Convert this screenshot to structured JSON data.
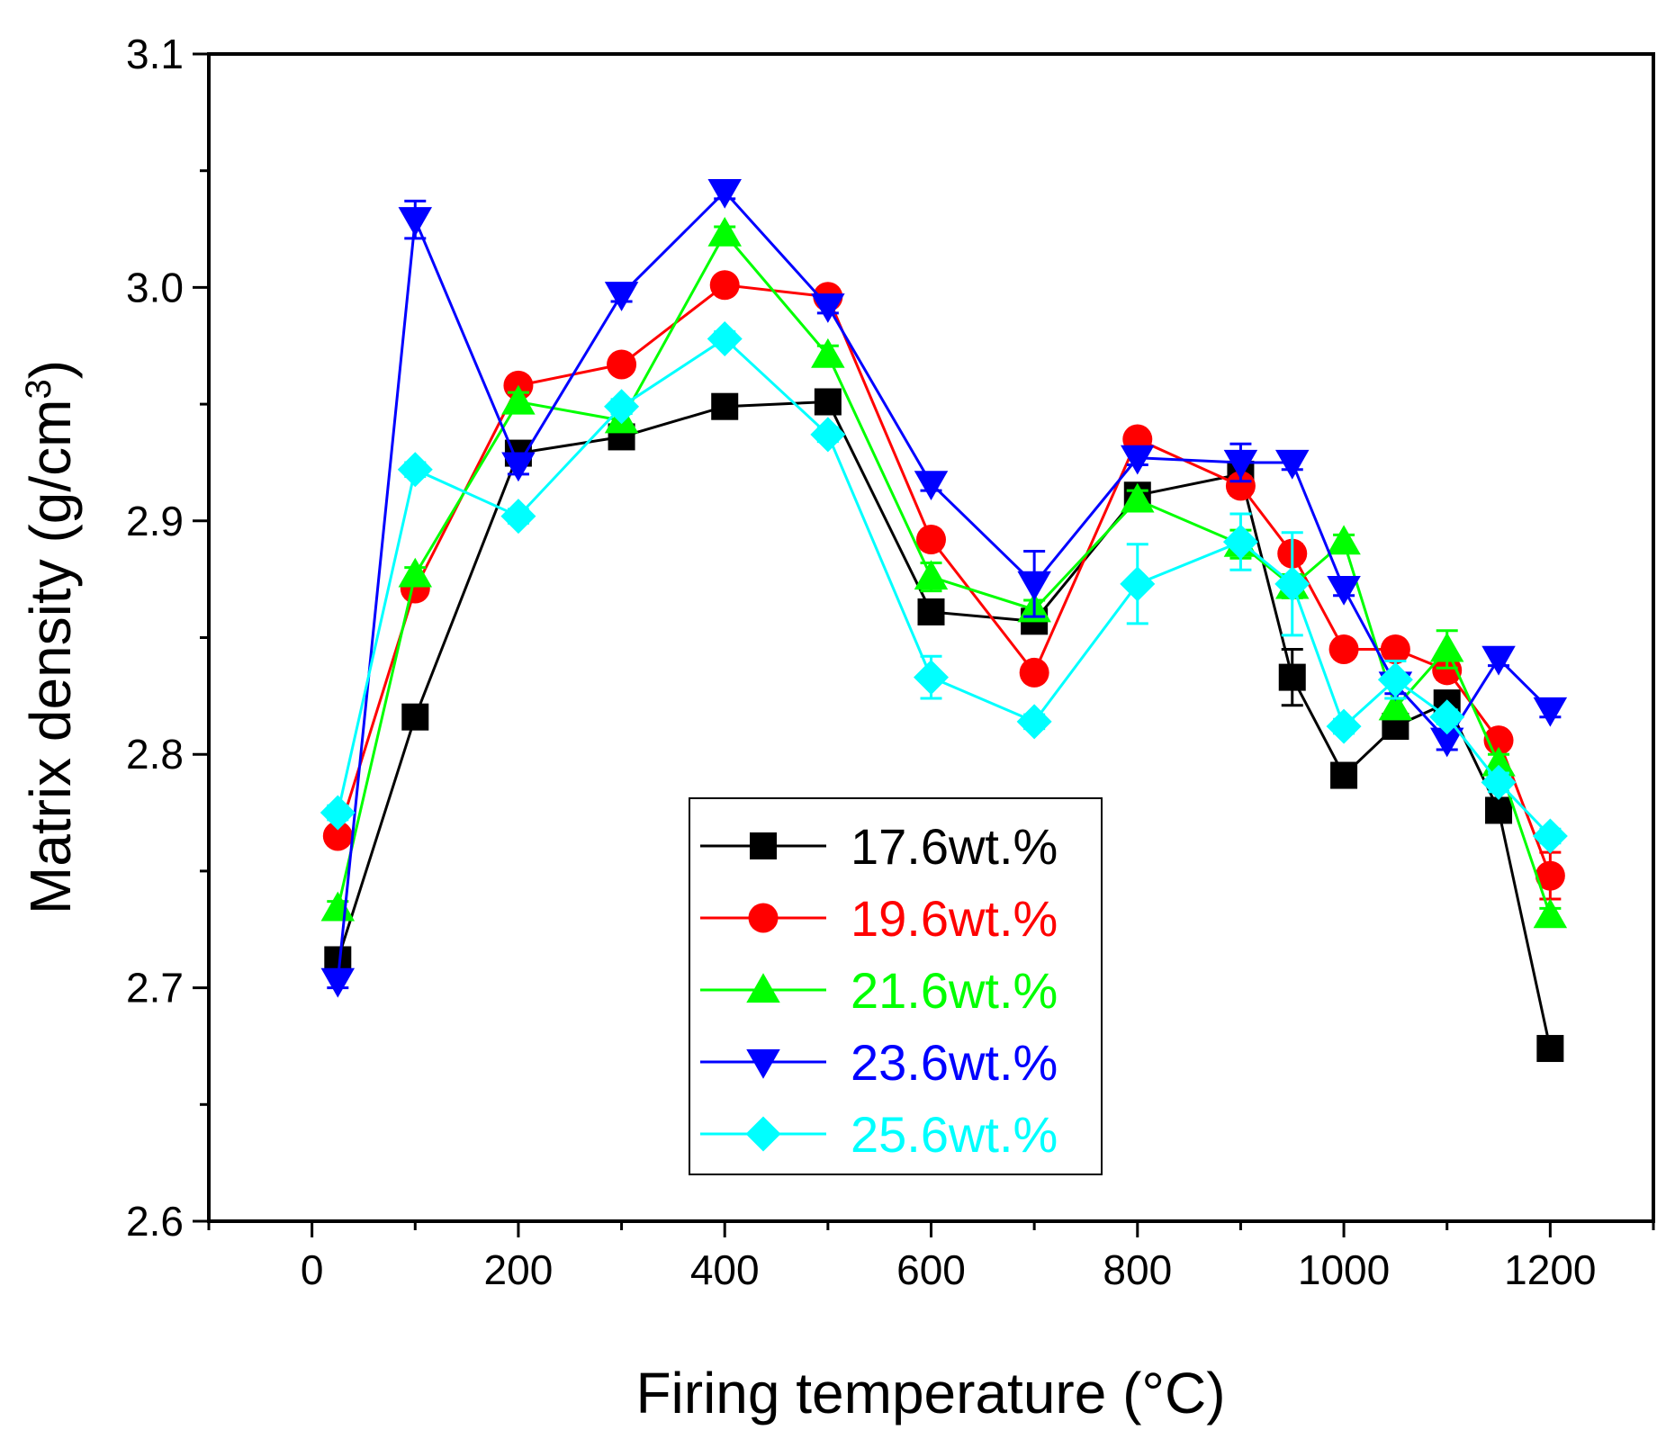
{
  "chart_data": {
    "type": "line",
    "xlabel": "Firing temperature (°C)",
    "ylabel_main": "Matrix density (g/cm",
    "ylabel_sup": "3",
    "ylabel_close": ")",
    "xlim": [
      -100,
      1300
    ],
    "ylim": [
      2.6,
      3.1
    ],
    "x_major_ticks": [
      0,
      200,
      400,
      600,
      800,
      1000,
      1200
    ],
    "x_tick_labels": [
      "0",
      "200",
      "400",
      "600",
      "800",
      "1000",
      "1200"
    ],
    "y_major_ticks": [
      2.6,
      2.7,
      2.8,
      2.9,
      3.0,
      3.1
    ],
    "y_tick_labels": [
      "2.6",
      "2.7",
      "2.8",
      "2.9",
      "3.0",
      "3.1"
    ],
    "legend_position": "lower-center",
    "x": [
      25,
      100,
      200,
      300,
      400,
      500,
      600,
      700,
      800,
      900,
      950,
      1000,
      1050,
      1100,
      1150,
      1200
    ],
    "series": [
      {
        "name": "17.6wt.%",
        "color": "#000000",
        "marker": "square",
        "values": [
          2.712,
          2.816,
          2.929,
          2.936,
          2.949,
          2.951,
          2.861,
          2.857,
          2.911,
          2.92,
          2.833,
          2.791,
          2.812,
          2.822,
          2.776,
          2.674
        ],
        "errors": [
          0.003,
          0.003,
          0.003,
          0.003,
          0.003,
          0.003,
          0.003,
          0.004,
          0.004,
          0.004,
          0.012,
          0.003,
          0.003,
          0.004,
          0.003,
          0.003
        ]
      },
      {
        "name": "19.6wt.%",
        "color": "#ff0000",
        "marker": "circle",
        "values": [
          2.765,
          2.871,
          2.958,
          2.967,
          3.001,
          2.996,
          2.892,
          2.835,
          2.935,
          2.915,
          2.886,
          2.845,
          2.845,
          2.836,
          2.806,
          2.748
        ],
        "errors": [
          0.003,
          0.003,
          0.003,
          0.003,
          0.003,
          0.003,
          0.004,
          0.003,
          0.003,
          0.004,
          0.004,
          0.003,
          0.003,
          0.004,
          0.003,
          0.01
        ]
      },
      {
        "name": "21.6wt.%",
        "color": "#00ff00",
        "marker": "triangle-up",
        "values": [
          2.734,
          2.877,
          2.951,
          2.943,
          3.023,
          2.971,
          2.876,
          2.862,
          2.909,
          2.89,
          2.872,
          2.891,
          2.82,
          2.845,
          2.796,
          2.731
        ],
        "errors": [
          0.003,
          0.003,
          0.004,
          0.003,
          0.003,
          0.004,
          0.006,
          0.004,
          0.004,
          0.006,
          0.005,
          0.003,
          0.004,
          0.008,
          0.004,
          0.003
        ]
      },
      {
        "name": "23.6wt.%",
        "color": "#0000ff",
        "marker": "triangle-down",
        "values": [
          2.703,
          3.029,
          2.924,
          2.997,
          3.041,
          2.992,
          2.916,
          2.873,
          2.927,
          2.925,
          2.925,
          2.871,
          2.83,
          2.806,
          2.841,
          2.819
        ],
        "errors": [
          0.003,
          0.008,
          0.004,
          0.003,
          0.003,
          0.003,
          0.003,
          0.014,
          0.003,
          0.008,
          0.003,
          0.003,
          0.004,
          0.004,
          0.003,
          0.003
        ]
      },
      {
        "name": "25.6wt.%",
        "color": "#00ffff",
        "marker": "diamond",
        "values": [
          2.775,
          2.922,
          2.902,
          2.949,
          2.978,
          2.937,
          2.833,
          2.814,
          2.873,
          2.891,
          2.873,
          2.812,
          2.832,
          2.816,
          2.788,
          2.765
        ],
        "errors": [
          0.003,
          0.003,
          0.003,
          0.003,
          0.003,
          0.003,
          0.009,
          0.003,
          0.017,
          0.012,
          0.022,
          0.003,
          0.008,
          0.003,
          0.004,
          0.003
        ]
      }
    ]
  }
}
